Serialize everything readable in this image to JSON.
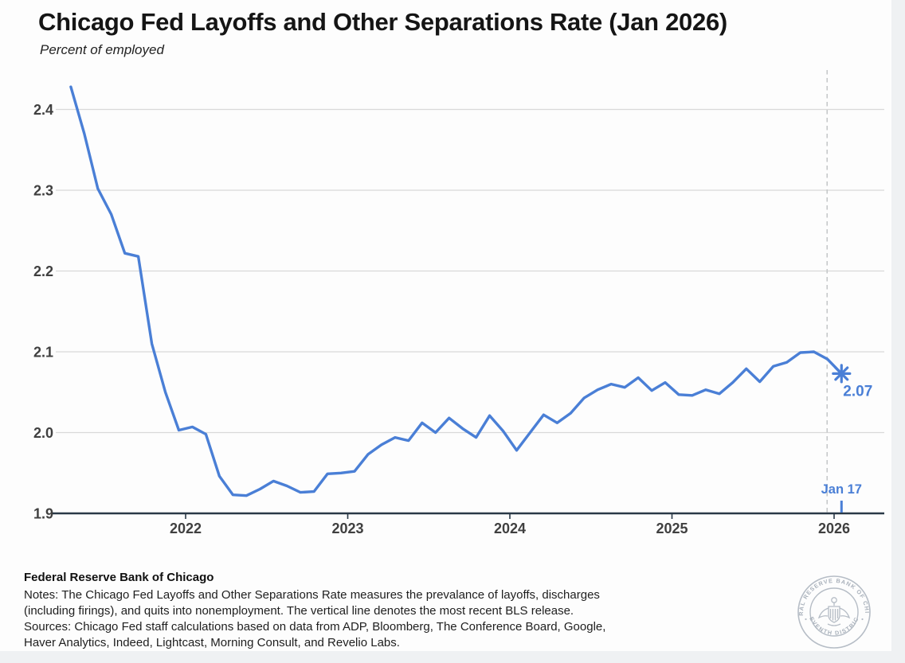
{
  "page": {
    "title": "Chicago Fed Layoffs and Other Separations Rate (Jan 2026)",
    "subtitle": "Percent of employed"
  },
  "footer": {
    "org": "Federal Reserve Bank of Chicago",
    "notes_lines": [
      "Notes: The Chicago Fed Layoffs and Other Separations Rate measures the prevalance of layoffs, discharges",
      "(including firings), and quits into nonemployment. The vertical line denotes the most recent BLS release.",
      "Sources: Chicago Fed staff calculations based on data from ADP, Bloomberg, The Conference Board, Google,",
      "Haver Analytics, Indeed, Lightcast, Morning Consult, and Revelio Labs."
    ],
    "seal_text_top": "FEDERAL RESERVE BANK OF CHICAGO",
    "seal_text_bottom": "SEVENTH DISTRICT"
  },
  "chart_data": {
    "type": "line",
    "title": "Chicago Fed Layoffs and Other Separations Rate (Jan 2026)",
    "subtitle": "Percent of employed",
    "ylabel": "Percent of employed",
    "ylim": [
      1.9,
      2.45
    ],
    "yticks": [
      1.9,
      2.0,
      2.1,
      2.2,
      2.3,
      2.4
    ],
    "ytick_labels": [
      "1.9",
      "2.0",
      "2.1",
      "2.2",
      "2.3",
      "2.4"
    ],
    "xtick_labels": [
      "2022",
      "2023",
      "2024",
      "2025",
      "2026"
    ],
    "grid": "horizontal",
    "legend": "none",
    "series": [
      {
        "name": "Layoffs and Other Separations Rate",
        "points": [
          [
            "2021-04",
            2.428
          ],
          [
            "2021-05",
            2.37
          ],
          [
            "2021-06",
            2.302
          ],
          [
            "2021-07",
            2.27
          ],
          [
            "2021-08",
            2.222
          ],
          [
            "2021-09",
            2.218
          ],
          [
            "2021-10",
            2.11
          ],
          [
            "2021-11",
            2.05
          ],
          [
            "2021-12",
            2.003
          ],
          [
            "2022-01",
            2.007
          ],
          [
            "2022-02",
            1.998
          ],
          [
            "2022-03",
            1.946
          ],
          [
            "2022-04",
            1.923
          ],
          [
            "2022-05",
            1.922
          ],
          [
            "2022-06",
            1.93
          ],
          [
            "2022-07",
            1.94
          ],
          [
            "2022-08",
            1.934
          ],
          [
            "2022-09",
            1.926
          ],
          [
            "2022-10",
            1.927
          ],
          [
            "2022-11",
            1.949
          ],
          [
            "2022-12",
            1.95
          ],
          [
            "2023-01",
            1.952
          ],
          [
            "2023-02",
            1.973
          ],
          [
            "2023-03",
            1.985
          ],
          [
            "2023-04",
            1.994
          ],
          [
            "2023-05",
            1.99
          ],
          [
            "2023-06",
            2.012
          ],
          [
            "2023-07",
            2.0
          ],
          [
            "2023-08",
            2.018
          ],
          [
            "2023-09",
            2.005
          ],
          [
            "2023-10",
            1.994
          ],
          [
            "2023-11",
            2.021
          ],
          [
            "2023-12",
            2.002
          ],
          [
            "2024-01",
            1.978
          ],
          [
            "2024-02",
            2.0
          ],
          [
            "2024-03",
            2.022
          ],
          [
            "2024-04",
            2.012
          ],
          [
            "2024-05",
            2.024
          ],
          [
            "2024-06",
            2.043
          ],
          [
            "2024-07",
            2.053
          ],
          [
            "2024-08",
            2.06
          ],
          [
            "2024-09",
            2.056
          ],
          [
            "2024-10",
            2.068
          ],
          [
            "2024-11",
            2.052
          ],
          [
            "2024-12",
            2.062
          ],
          [
            "2025-01",
            2.047
          ],
          [
            "2025-02",
            2.046
          ],
          [
            "2025-03",
            2.053
          ],
          [
            "2025-04",
            2.048
          ],
          [
            "2025-05",
            2.062
          ],
          [
            "2025-06",
            2.079
          ],
          [
            "2025-07",
            2.063
          ],
          [
            "2025-08",
            2.082
          ],
          [
            "2025-09",
            2.087
          ],
          [
            "2025-10",
            2.099
          ],
          [
            "2025-11",
            2.1
          ],
          [
            "2025-12",
            2.091
          ]
        ]
      }
    ],
    "nowcast_point": {
      "date": "2026-01-17",
      "value": 2.073,
      "label": "2.07",
      "marker": "asterisk"
    },
    "release_line": {
      "date": "2025-12-15",
      "style": "dashed"
    },
    "release_tick": {
      "date": "2026-01-17",
      "label": "Jan 17"
    },
    "colors": {
      "line": "#4a7fd6",
      "annotation": "#4a7fd6",
      "grid": "#d9d9d9",
      "axis": "#2a3947",
      "dashed": "#c6c8ca",
      "tick_text": "#404040"
    }
  }
}
